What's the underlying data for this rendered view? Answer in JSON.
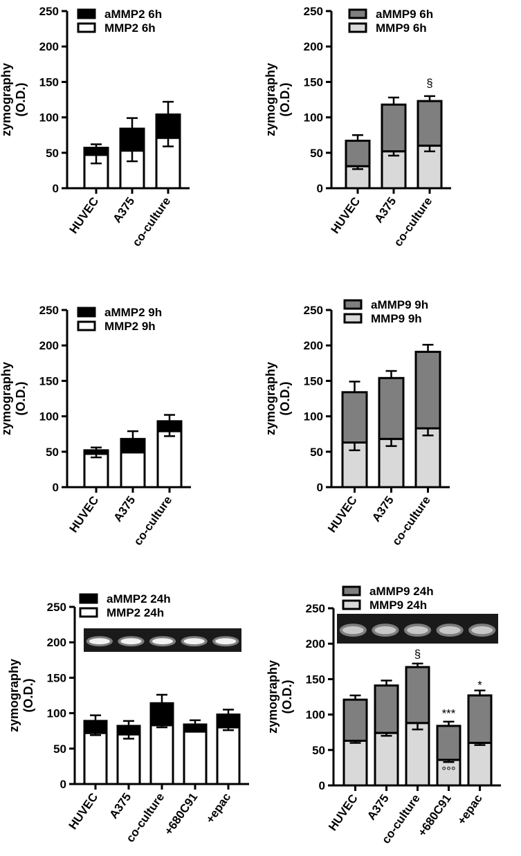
{
  "chart_data": [
    {
      "id": "panel-mmp2-6h",
      "type": "bar",
      "stacked": true,
      "categories": [
        "HUVEC",
        "A375",
        "co-culture"
      ],
      "ylabel": [
        "zymography",
        "(O.D.)"
      ],
      "ylim": [
        0,
        250
      ],
      "yticks": [
        0,
        50,
        100,
        150,
        200,
        250
      ],
      "legend_position": "top-left",
      "series": [
        {
          "name": "aMMP2 6h",
          "color": "#000000",
          "values": [
            10,
            31,
            33
          ],
          "total_error": [
            5,
            15,
            18
          ]
        },
        {
          "name": "MMP2 6h",
          "color": "#ffffff",
          "values": [
            47,
            53,
            71
          ],
          "error": [
            12,
            15,
            12
          ]
        }
      ],
      "annotations": []
    },
    {
      "id": "panel-mmp9-6h",
      "type": "bar",
      "stacked": true,
      "categories": [
        "HUVEC",
        "A375",
        "co-culture"
      ],
      "ylabel": [
        "zymography",
        "(O.D.)"
      ],
      "ylim": [
        0,
        250
      ],
      "yticks": [
        0,
        50,
        100,
        150,
        200,
        250
      ],
      "legend_position": "top-left",
      "series": [
        {
          "name": "aMMP9 6h",
          "color": "#7f7f7f",
          "values": [
            36,
            66,
            63
          ],
          "total_error": [
            8,
            10,
            7
          ]
        },
        {
          "name": "MMP9 6h",
          "color": "#d9d9d9",
          "values": [
            31,
            52,
            60
          ],
          "error": [
            4,
            6,
            8
          ]
        }
      ],
      "annotations": [
        {
          "text": "§",
          "category": "co-culture",
          "y": 143
        }
      ]
    },
    {
      "id": "panel-mmp2-9h",
      "type": "bar",
      "stacked": true,
      "categories": [
        "HUVEC",
        "A375",
        "co-culture"
      ],
      "ylabel": [
        "zymography",
        "(O.D.)"
      ],
      "ylim": [
        0,
        250
      ],
      "yticks": [
        0,
        50,
        100,
        150,
        200,
        250
      ],
      "legend_position": "top-left",
      "series": [
        {
          "name": "aMMP2 9h",
          "color": "#000000",
          "values": [
            5,
            19,
            14
          ],
          "total_error": [
            4,
            11,
            9
          ]
        },
        {
          "name": "MMP2 9h",
          "color": "#ffffff",
          "values": [
            47,
            49,
            79
          ],
          "error": [
            5,
            0,
            7
          ]
        }
      ],
      "annotations": []
    },
    {
      "id": "panel-mmp9-9h",
      "type": "bar",
      "stacked": true,
      "categories": [
        "HUVEC",
        "A375",
        "co-culture"
      ],
      "ylabel": [
        "zymography",
        "(O.D.)"
      ],
      "ylim": [
        0,
        250
      ],
      "yticks": [
        0,
        50,
        100,
        150,
        200,
        250
      ],
      "legend_position": "top-left",
      "series": [
        {
          "name": "aMMP9 9h",
          "color": "#7f7f7f",
          "values": [
            71,
            86,
            108
          ],
          "total_error": [
            15,
            10,
            10
          ]
        },
        {
          "name": "MMP9 9h",
          "color": "#d9d9d9",
          "values": [
            63,
            68,
            83
          ],
          "error": [
            11,
            10,
            10
          ]
        }
      ],
      "annotations": []
    },
    {
      "id": "panel-mmp2-24h",
      "type": "bar",
      "stacked": true,
      "categories": [
        "HUVEC",
        "A375",
        "co-culture",
        "+680C91",
        "+epac"
      ],
      "ylabel": [
        "zymography",
        "(O.D.)"
      ],
      "ylim": [
        0,
        250
      ],
      "yticks": [
        0,
        50,
        100,
        150,
        200,
        250
      ],
      "legend_position": "top-left",
      "inset_blot": true,
      "series": [
        {
          "name": "aMMP2 24h",
          "color": "#000000",
          "values": [
            17,
            12,
            31,
            10,
            18
          ],
          "total_error": [
            8,
            7,
            12,
            6,
            7
          ]
        },
        {
          "name": "MMP2 24h",
          "color": "#ffffff",
          "values": [
            72,
            70,
            83,
            74,
            80
          ],
          "error": [
            3,
            6,
            3,
            0,
            4
          ]
        }
      ],
      "annotations": []
    },
    {
      "id": "panel-mmp9-24h",
      "type": "bar",
      "stacked": true,
      "categories": [
        "HUVEC",
        "A375",
        "co-culture",
        "+680C91",
        "+epac"
      ],
      "ylabel": [
        "zymography",
        "(O.D.)"
      ],
      "ylim": [
        0,
        250
      ],
      "yticks": [
        0,
        50,
        100,
        150,
        200,
        250
      ],
      "legend_position": "top-left",
      "inset_blot": true,
      "series": [
        {
          "name": "aMMP9 24h",
          "color": "#7f7f7f",
          "values": [
            58,
            67,
            79,
            48,
            67
          ],
          "total_error": [
            6,
            7,
            5,
            6,
            7
          ]
        },
        {
          "name": "MMP9 24h",
          "color": "#d9d9d9",
          "values": [
            63,
            74,
            88,
            36,
            60
          ],
          "error": [
            3,
            4,
            9,
            3,
            3
          ]
        }
      ],
      "annotations": [
        {
          "text": "§",
          "category": "co-culture",
          "y": 180
        },
        {
          "text": "***",
          "category": "+680C91",
          "y": 96
        },
        {
          "text": "°°°",
          "category": "+680C91",
          "y": 15
        },
        {
          "text": "*",
          "category": "+epac",
          "y": 136
        }
      ]
    }
  ]
}
